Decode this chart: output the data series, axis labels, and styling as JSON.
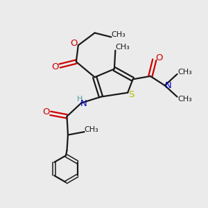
{
  "bg_color": "#ebebeb",
  "bond_color": "#1a1a1a",
  "S_color": "#b8b800",
  "N_color": "#0000cc",
  "O_color": "#cc0000",
  "H_color": "#4a9a9a",
  "figsize": [
    3.0,
    3.0
  ],
  "dpi": 100,
  "xlim": [
    0,
    10
  ],
  "ylim": [
    0,
    10
  ]
}
